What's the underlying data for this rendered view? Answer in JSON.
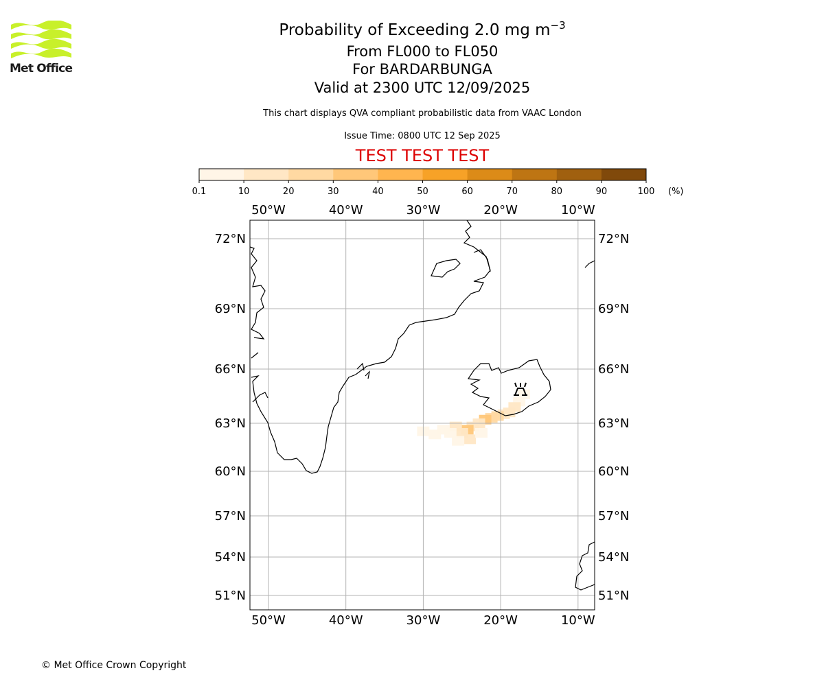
{
  "header": {
    "logo_text": "Met Office",
    "title_prefix": "Probability of Exceeding 2.0 mg m",
    "title_superscript": "−3",
    "line2": "From FL000 to FL050",
    "line3": "For BARDARBUNGA",
    "line4": "Valid at 2300 UTC 12/09/2025",
    "note1": "This chart displays QVA compliant probabilistic data from VAAC London",
    "note2": "Issue Time: 0800 UTC 12 Sep 2025",
    "banner": "TEST TEST TEST"
  },
  "colorbar": {
    "tick_labels": [
      "0.1",
      "10",
      "20",
      "30",
      "40",
      "50",
      "60",
      "70",
      "80",
      "90",
      "100"
    ],
    "unit_label": "(%)",
    "colors": [
      "#fff5e7",
      "#ffe7c5",
      "#ffd9a2",
      "#ffc779",
      "#ffb54f",
      "#f7a227",
      "#dc8b18",
      "#be7513",
      "#a0600f",
      "#80490b",
      "#623609"
    ]
  },
  "map": {
    "lon_labels": [
      "50°W",
      "40°W",
      "30°W",
      "20°W",
      "10°W"
    ],
    "lat_labels": [
      "72°N",
      "69°N",
      "66°N",
      "63°N",
      "60°N",
      "57°N",
      "54°N",
      "51°N"
    ],
    "grid": true,
    "volcano_icon": "volcano-symbol-icon",
    "probability_plume_percent": [
      {
        "lon": -17.0,
        "lat": 64.6,
        "p": 6
      },
      {
        "lon": -17.6,
        "lat": 64.2,
        "p": 8
      },
      {
        "lon": -18.2,
        "lat": 63.9,
        "p": 12
      },
      {
        "lon": -18.9,
        "lat": 63.6,
        "p": 10
      },
      {
        "lon": -19.6,
        "lat": 63.5,
        "p": 14
      },
      {
        "lon": -20.4,
        "lat": 63.4,
        "p": 22
      },
      {
        "lon": -21.2,
        "lat": 63.3,
        "p": 26
      },
      {
        "lon": -22.0,
        "lat": 63.2,
        "p": 30
      },
      {
        "lon": -22.8,
        "lat": 63.0,
        "p": 18
      },
      {
        "lon": -23.6,
        "lat": 62.8,
        "p": 16
      },
      {
        "lon": -24.3,
        "lat": 62.6,
        "p": 32
      },
      {
        "lon": -25.0,
        "lat": 62.4,
        "p": 14
      },
      {
        "lon": -25.8,
        "lat": 62.8,
        "p": 10
      },
      {
        "lon": -26.5,
        "lat": 62.4,
        "p": 8
      },
      {
        "lon": -27.4,
        "lat": 62.6,
        "p": 5
      },
      {
        "lon": -28.5,
        "lat": 62.3,
        "p": 3
      },
      {
        "lon": -30.0,
        "lat": 62.5,
        "p": 2
      },
      {
        "lon": -24.0,
        "lat": 62.0,
        "p": 12
      },
      {
        "lon": -25.5,
        "lat": 61.9,
        "p": 6
      },
      {
        "lon": -22.5,
        "lat": 62.4,
        "p": 9
      }
    ]
  },
  "footer": {
    "copyright": "© Met Office Crown Copyright"
  }
}
